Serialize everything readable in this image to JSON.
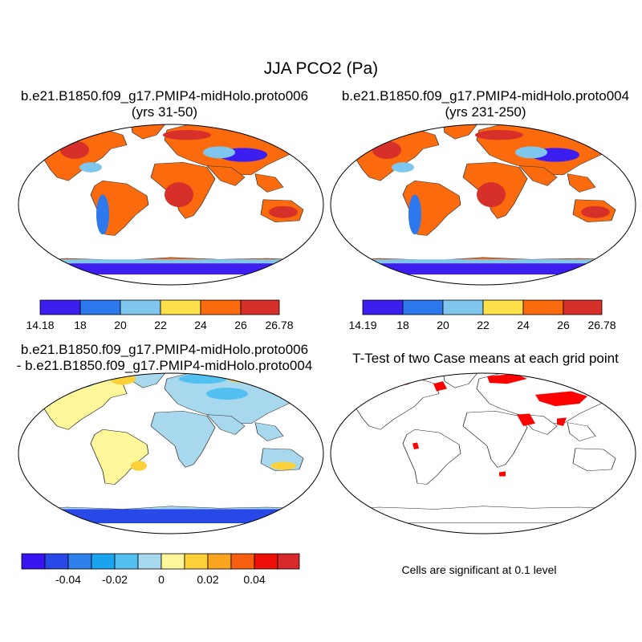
{
  "figure": {
    "title": "JJA PCO2 (Pa)"
  },
  "panels": {
    "top_left": {
      "title_line1": "b.e21.B1850.f09_g17.PMIP4-midHolo.proto006",
      "title_line2": "(yrs 31-50)"
    },
    "top_right": {
      "title_line1": "b.e21.B1850.f09_g17.PMIP4-midHolo.proto004",
      "title_line2": "(yrs 231-250)"
    },
    "bottom_left": {
      "title_line1": "b.e21.B1850.f09_g17.PMIP4-midHolo.proto006",
      "title_line2": "- b.e21.B1850.f09_g17.PMIP4-midHolo.proto004"
    },
    "bottom_right": {
      "title_line1": "T-Test of two Case means at each grid point",
      "note": "Cells are significant at 0.1 level"
    }
  },
  "colorbars": {
    "top_left": {
      "colors": [
        "#3c1ef0",
        "#2c78ec",
        "#7ec6ee",
        "#fde04a",
        "#fb6a0c",
        "#d7302a"
      ],
      "labels": [
        "14.18",
        "18",
        "20",
        "22",
        "24",
        "26",
        "26.78"
      ]
    },
    "top_right": {
      "colors": [
        "#3c1ef0",
        "#2c78ec",
        "#7ec6ee",
        "#fde04a",
        "#fb6a0c",
        "#d7302a"
      ],
      "labels": [
        "14.19",
        "18",
        "20",
        "22",
        "24",
        "26",
        "26.78"
      ]
    },
    "difference": {
      "colors": [
        "#3a14f0",
        "#2849e8",
        "#2e80ea",
        "#1aa4f0",
        "#52c0f0",
        "#a8d8ee",
        "#fff799",
        "#fbd038",
        "#fba420",
        "#f86010",
        "#ee1008",
        "#d8282a"
      ],
      "labels": [
        "-0.04",
        "-0.02",
        "0",
        "0.02",
        "0.04"
      ]
    }
  },
  "colors": {
    "land_warm": "#fb6a0c",
    "land_hot": "#d7302a",
    "land_mid": "#fde04a",
    "land_cool": "#7ec6ee",
    "land_cold": "#2c78ec",
    "land_coldest": "#3c1ef0",
    "diff_yellow": "#fff799",
    "diff_lightblue": "#a8d8ee",
    "diff_blue": "#2849e8",
    "significant": "#ff0000"
  }
}
